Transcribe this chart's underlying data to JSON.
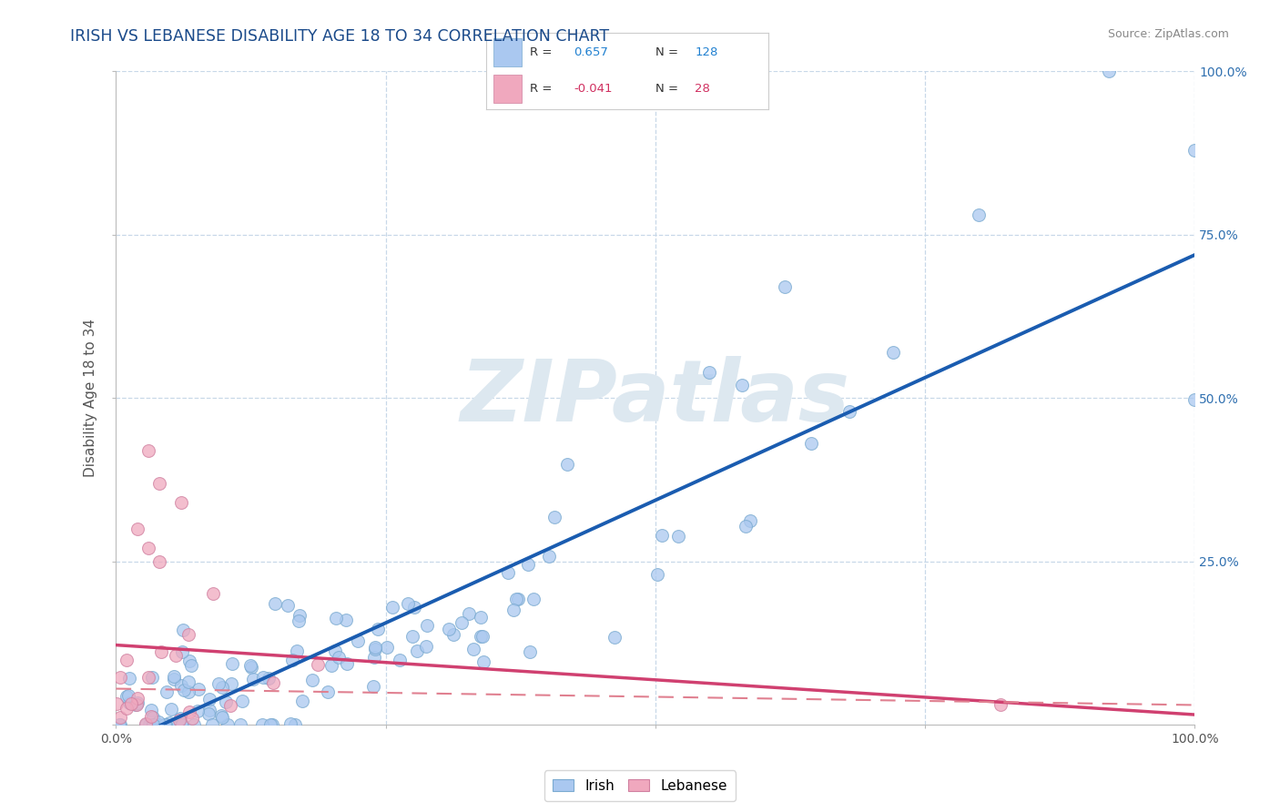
{
  "title": "IRISH VS LEBANESE DISABILITY AGE 18 TO 34 CORRELATION CHART",
  "source_text": "Source: ZipAtlas.com",
  "ylabel": "Disability Age 18 to 34",
  "irish_R": 0.657,
  "irish_N": 128,
  "lebanese_R": -0.041,
  "lebanese_N": 28,
  "irish_color": "#aac8f0",
  "irish_edge_color": "#7aaad0",
  "irish_line_color": "#1a5cb0",
  "lebanese_color": "#f0a8be",
  "lebanese_edge_color": "#d080a0",
  "lebanese_solid_line_color": "#d04070",
  "lebanese_dash_line_color": "#e08090",
  "title_color": "#1a4a8a",
  "legend_R_color_irish": "#2080d0",
  "legend_R_color_lebanese": "#d03060",
  "background_color": "#ffffff",
  "watermark_color": "#dde8f0",
  "grid_color": "#c8d8e8"
}
